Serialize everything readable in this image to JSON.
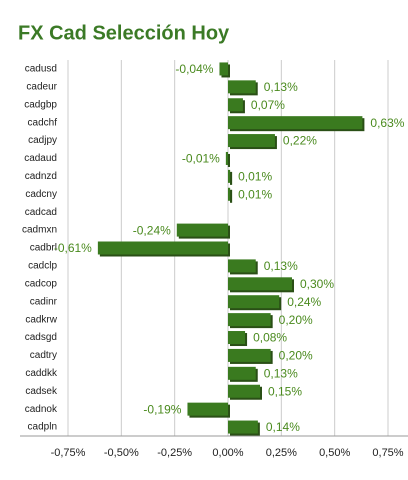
{
  "chart_data": {
    "type": "bar",
    "orientation": "horizontal",
    "title": "FX Cad Selección Hoy",
    "categories": [
      "cadusd",
      "cadeur",
      "cadgbp",
      "cadchf",
      "cadjpy",
      "cadaud",
      "cadnzd",
      "cadcny",
      "cadcad",
      "cadmxn",
      "cadbrl",
      "cadclp",
      "cadcop",
      "cadinr",
      "cadkrw",
      "cadsgd",
      "cadtry",
      "caddkk",
      "cadsek",
      "cadnok",
      "cadpln"
    ],
    "values": [
      -0.04,
      0.13,
      0.07,
      0.63,
      0.22,
      -0.01,
      0.01,
      0.01,
      null,
      -0.24,
      -0.61,
      0.13,
      0.3,
      0.24,
      0.2,
      0.08,
      0.2,
      0.13,
      0.15,
      -0.19,
      0.14
    ],
    "value_labels": [
      "-0,04%",
      "0,13%",
      "0,07%",
      "0,63%",
      "0,22%",
      "-0,01%",
      "0,01%",
      "0,01%",
      null,
      "-0,24%",
      "-0,61%",
      "0,13%",
      "0,30%",
      "0,24%",
      "0,20%",
      "0,08%",
      "0,20%",
      "0,13%",
      "0,15%",
      "-0,19%",
      "0,14%"
    ],
    "color": "#3a7a1f",
    "xlim": [
      -0.75,
      0.75
    ],
    "xticks": [
      {
        "value": -0.75,
        "label": "-0,75%"
      },
      {
        "value": -0.5,
        "label": "-0,50%"
      },
      {
        "value": -0.25,
        "label": "-0,25%"
      },
      {
        "value": 0,
        "label": "0,00%"
      },
      {
        "value": 0.25,
        "label": "0,25%"
      },
      {
        "value": 0.5,
        "label": "0,50%"
      },
      {
        "value": 0.75,
        "label": "0,75%"
      }
    ],
    "grid": true
  }
}
